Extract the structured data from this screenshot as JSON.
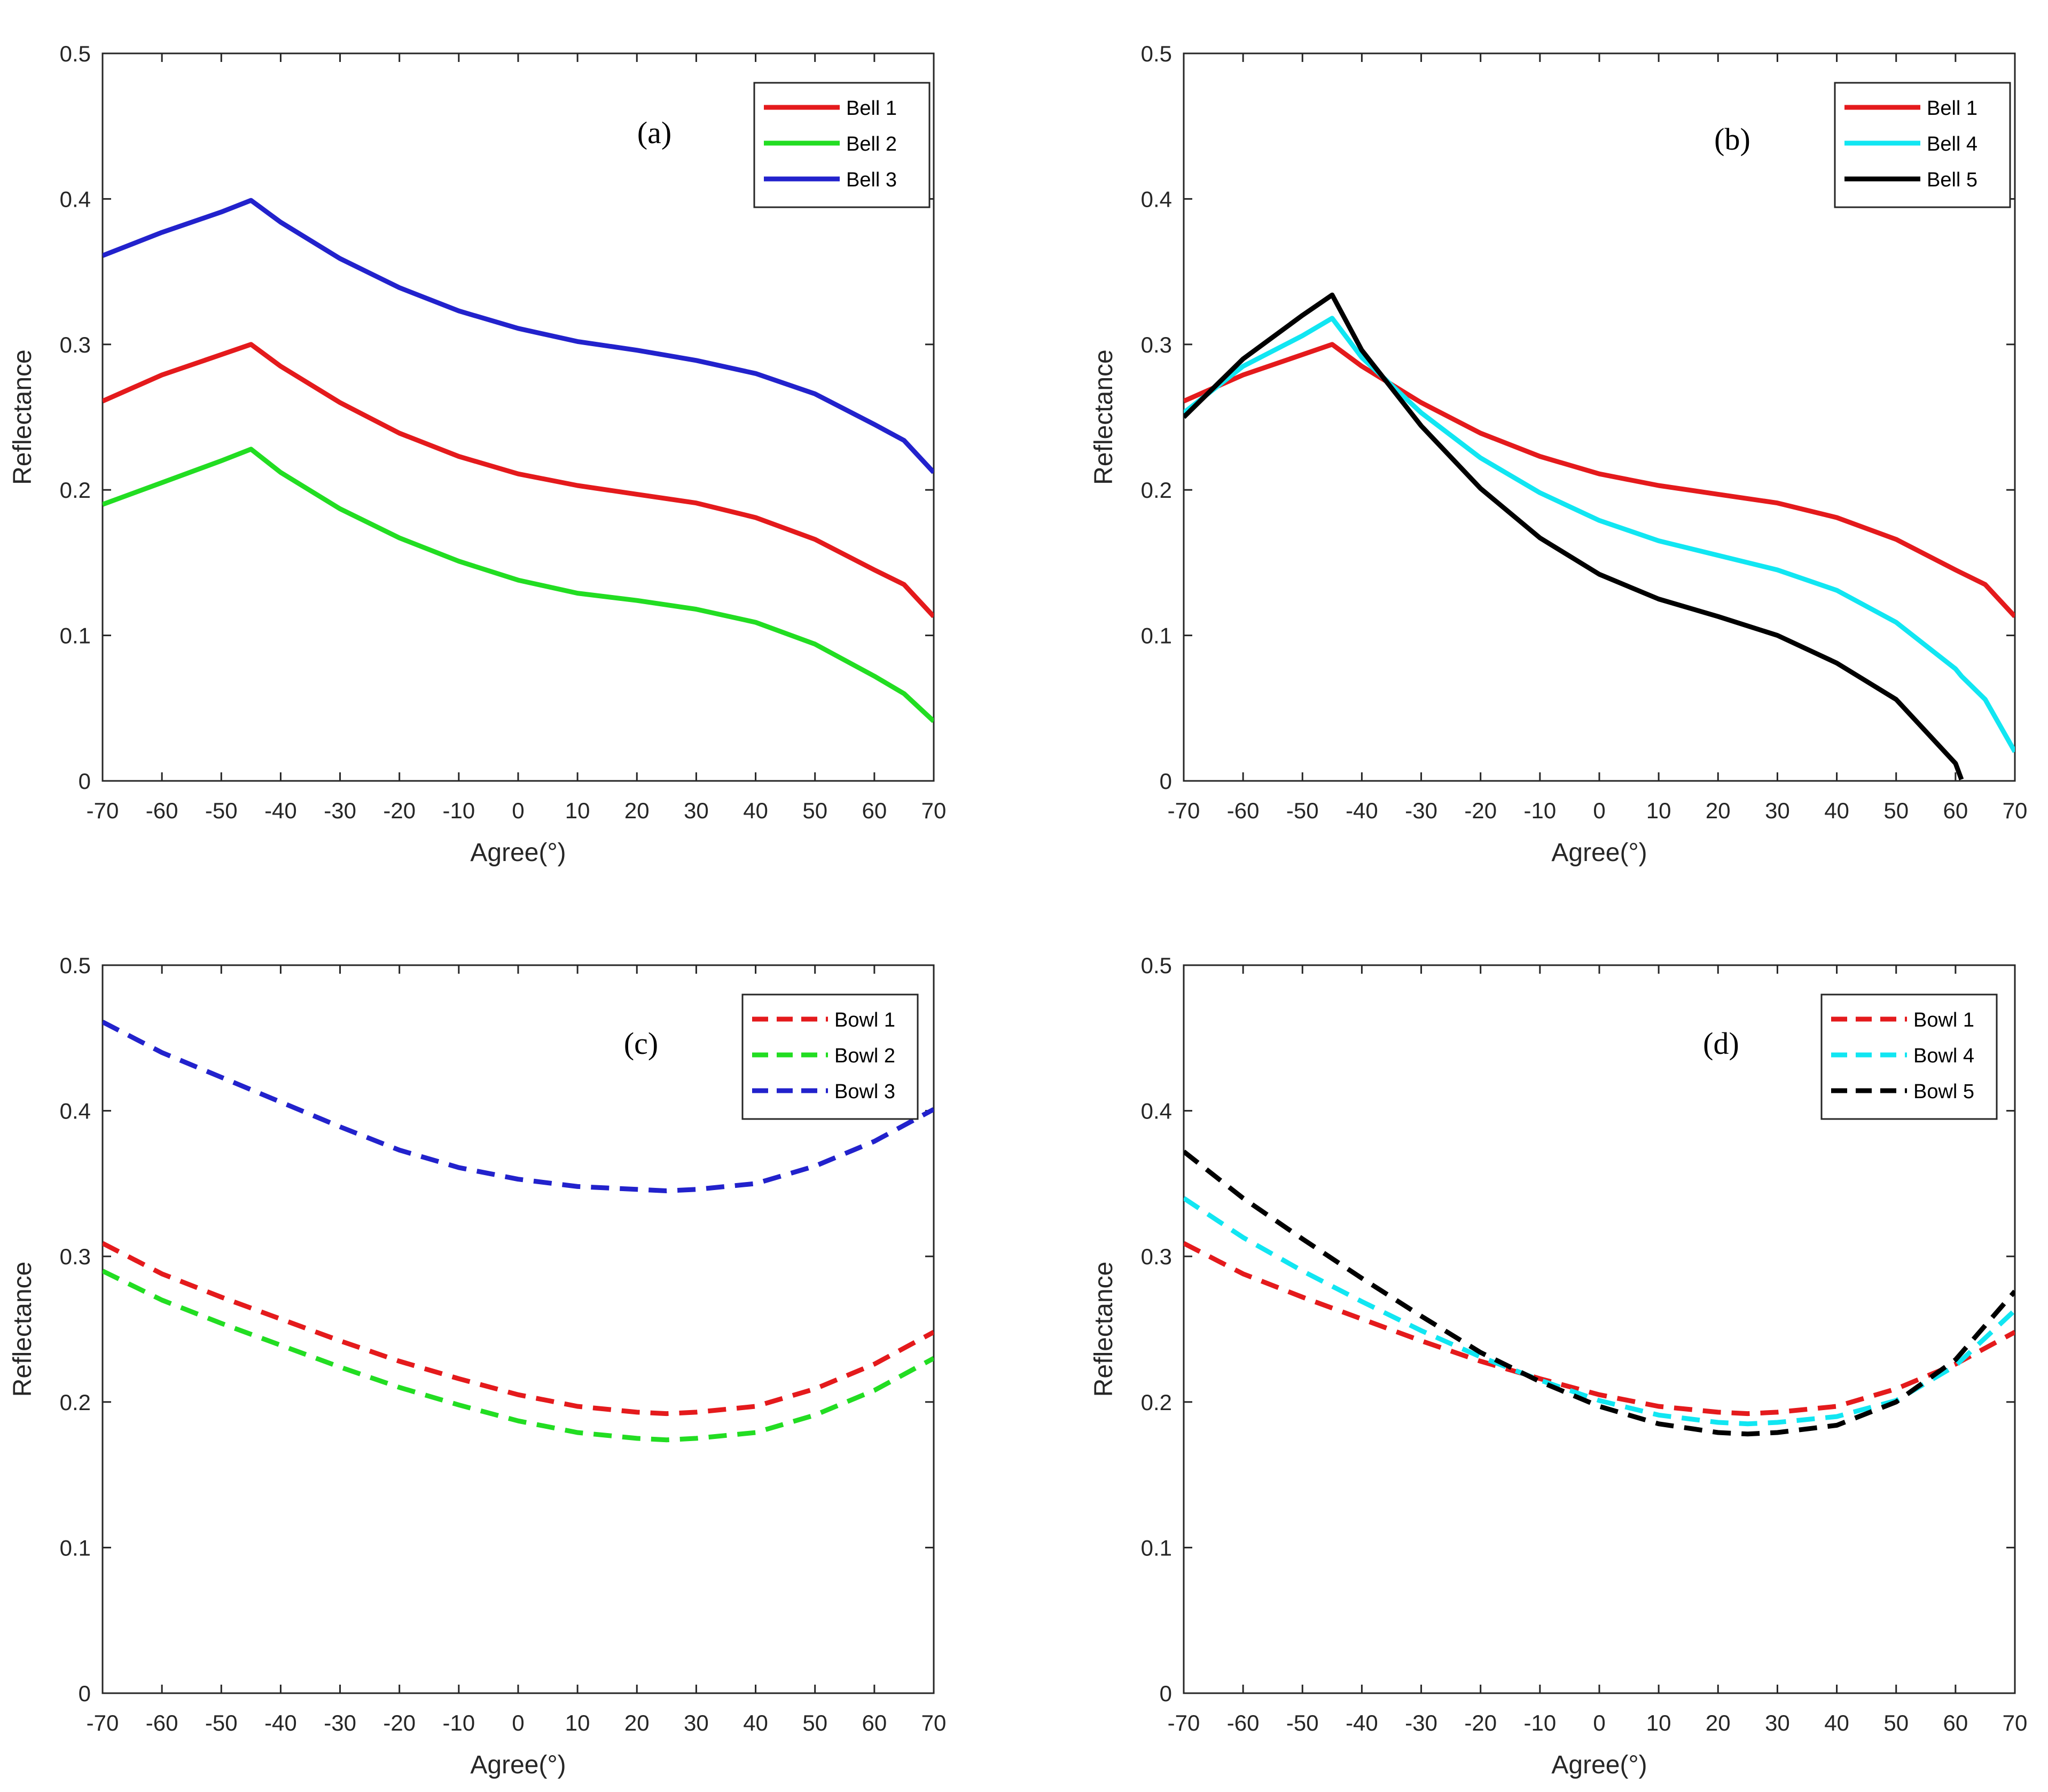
{
  "chart_data": [
    {
      "type": "line",
      "panel_label": "(a)",
      "xlabel": "Agree(°)",
      "ylabel": "Reflectance",
      "xlim": [
        -70,
        70
      ],
      "ylim": [
        0,
        0.5
      ],
      "x_ticks": [
        "-70",
        "-60",
        "-50",
        "-40",
        "-30",
        "-20",
        "-10",
        "0",
        "10",
        "20",
        "30",
        "40",
        "50",
        "60",
        "70"
      ],
      "y_ticks": [
        "0",
        "0.1",
        "0.2",
        "0.3",
        "0.4",
        "0.5"
      ],
      "legend_position": "top-right",
      "x": [
        -70,
        -60,
        -50,
        -45,
        -40,
        -30,
        -20,
        -10,
        0,
        10,
        20,
        30,
        40,
        50,
        60,
        65,
        70
      ],
      "series": [
        {
          "name": "Bell 1",
          "color": "#e41a1c",
          "dash": "solid",
          "values": [
            0.261,
            0.279,
            0.293,
            0.3,
            0.285,
            0.26,
            0.239,
            0.223,
            0.211,
            0.203,
            0.197,
            0.191,
            0.181,
            0.166,
            0.145,
            0.135,
            0.113
          ]
        },
        {
          "name": "Bell 2",
          "color": "#22dd22",
          "dash": "solid",
          "values": [
            0.19,
            0.205,
            0.22,
            0.228,
            0.212,
            0.187,
            0.167,
            0.151,
            0.138,
            0.129,
            0.124,
            0.118,
            0.109,
            0.094,
            0.072,
            0.06,
            0.041
          ]
        },
        {
          "name": "Bell 3",
          "color": "#2222cc",
          "dash": "solid",
          "values": [
            0.361,
            0.377,
            0.391,
            0.399,
            0.384,
            0.359,
            0.339,
            0.323,
            0.311,
            0.302,
            0.296,
            0.289,
            0.28,
            0.266,
            0.245,
            0.234,
            0.212
          ]
        }
      ]
    },
    {
      "type": "line",
      "panel_label": "(b)",
      "xlabel": "Agree(°)",
      "ylabel": "Reflectance",
      "xlim": [
        -70,
        70
      ],
      "ylim": [
        0,
        0.5
      ],
      "x_ticks": [
        "-70",
        "-60",
        "-50",
        "-40",
        "-30",
        "-20",
        "-10",
        "0",
        "10",
        "20",
        "30",
        "40",
        "50",
        "60",
        "70"
      ],
      "y_ticks": [
        "0",
        "0.1",
        "0.2",
        "0.3",
        "0.4",
        "0.5"
      ],
      "legend_position": "top-right",
      "x": [
        -70,
        -60,
        -50,
        -45,
        -40,
        -30,
        -20,
        -10,
        0,
        10,
        20,
        30,
        40,
        50,
        60,
        61,
        65,
        70
      ],
      "series": [
        {
          "name": "Bell 1",
          "color": "#e41a1c",
          "dash": "solid",
          "values": [
            0.261,
            0.279,
            0.293,
            0.3,
            0.285,
            0.26,
            0.239,
            0.223,
            0.211,
            0.203,
            0.197,
            0.191,
            0.181,
            0.166,
            0.145,
            0.143,
            0.135,
            0.113
          ]
        },
        {
          "name": "Bell 4",
          "color": "#11e6f2",
          "dash": "solid",
          "values": [
            0.253,
            0.285,
            0.306,
            0.318,
            0.291,
            0.253,
            0.222,
            0.198,
            0.179,
            0.165,
            0.155,
            0.145,
            0.131,
            0.109,
            0.077,
            0.072,
            0.056,
            0.02
          ]
        },
        {
          "name": "Bell 5",
          "color": "#000000",
          "dash": "solid",
          "values": [
            0.25,
            0.29,
            0.32,
            0.334,
            0.296,
            0.244,
            0.201,
            0.167,
            0.142,
            0.125,
            0.113,
            0.1,
            0.081,
            0.056,
            0.012,
            0.001,
            null,
            null
          ]
        }
      ]
    },
    {
      "type": "line",
      "panel_label": "(c)",
      "xlabel": "Agree(°)",
      "ylabel": "Reflectance",
      "xlim": [
        -70,
        70
      ],
      "ylim": [
        0,
        0.5
      ],
      "x_ticks": [
        "-70",
        "-60",
        "-50",
        "-40",
        "-30",
        "-20",
        "-10",
        "0",
        "10",
        "20",
        "30",
        "40",
        "50",
        "60",
        "70"
      ],
      "y_ticks": [
        "0",
        "0.1",
        "0.2",
        "0.3",
        "0.4",
        "0.5"
      ],
      "legend_position": "top-right",
      "x": [
        -70,
        -60,
        -50,
        -40,
        -30,
        -20,
        -10,
        0,
        10,
        20,
        25,
        30,
        40,
        50,
        60,
        70
      ],
      "series": [
        {
          "name": "Bowl 1",
          "color": "#e41a1c",
          "dash": "dashed",
          "values": [
            0.309,
            0.288,
            0.272,
            0.257,
            0.242,
            0.228,
            0.216,
            0.205,
            0.197,
            0.193,
            0.192,
            0.193,
            0.197,
            0.209,
            0.226,
            0.248
          ]
        },
        {
          "name": "Bowl 2",
          "color": "#22dd22",
          "dash": "dashed",
          "values": [
            0.29,
            0.27,
            0.254,
            0.239,
            0.224,
            0.21,
            0.198,
            0.187,
            0.179,
            0.175,
            0.174,
            0.175,
            0.179,
            0.191,
            0.208,
            0.23
          ]
        },
        {
          "name": "Bowl 3",
          "color": "#2222cc",
          "dash": "dashed",
          "values": [
            0.461,
            0.44,
            0.423,
            0.406,
            0.389,
            0.373,
            0.361,
            0.353,
            0.348,
            0.346,
            0.345,
            0.346,
            0.35,
            0.362,
            0.379,
            0.401
          ]
        }
      ]
    },
    {
      "type": "line",
      "panel_label": "(d)",
      "xlabel": "Agree(°)",
      "ylabel": "Reflectance",
      "xlim": [
        -70,
        70
      ],
      "ylim": [
        0,
        0.5
      ],
      "x_ticks": [
        "-70",
        "-60",
        "-50",
        "-40",
        "-30",
        "-20",
        "-10",
        "0",
        "10",
        "20",
        "30",
        "40",
        "50",
        "60",
        "70"
      ],
      "y_ticks": [
        "0",
        "0.1",
        "0.2",
        "0.3",
        "0.4",
        "0.5"
      ],
      "legend_position": "top-right",
      "x": [
        -70,
        -60,
        -50,
        -40,
        -30,
        -20,
        -10,
        0,
        10,
        20,
        25,
        30,
        40,
        50,
        60,
        70
      ],
      "series": [
        {
          "name": "Bowl 1",
          "color": "#e41a1c",
          "dash": "dashed",
          "values": [
            0.309,
            0.288,
            0.272,
            0.257,
            0.242,
            0.228,
            0.216,
            0.205,
            0.197,
            0.193,
            0.192,
            0.193,
            0.197,
            0.209,
            0.226,
            0.248
          ]
        },
        {
          "name": "Bowl 4",
          "color": "#11e6f2",
          "dash": "dashed",
          "values": [
            0.34,
            0.313,
            0.29,
            0.269,
            0.249,
            0.231,
            0.215,
            0.201,
            0.191,
            0.186,
            0.185,
            0.186,
            0.19,
            0.201,
            0.225,
            0.263
          ]
        },
        {
          "name": "Bowl 5",
          "color": "#000000",
          "dash": "dashed",
          "values": [
            0.372,
            0.34,
            0.312,
            0.285,
            0.259,
            0.234,
            0.214,
            0.197,
            0.185,
            0.179,
            0.178,
            0.179,
            0.184,
            0.2,
            0.229,
            0.276
          ]
        }
      ]
    }
  ]
}
